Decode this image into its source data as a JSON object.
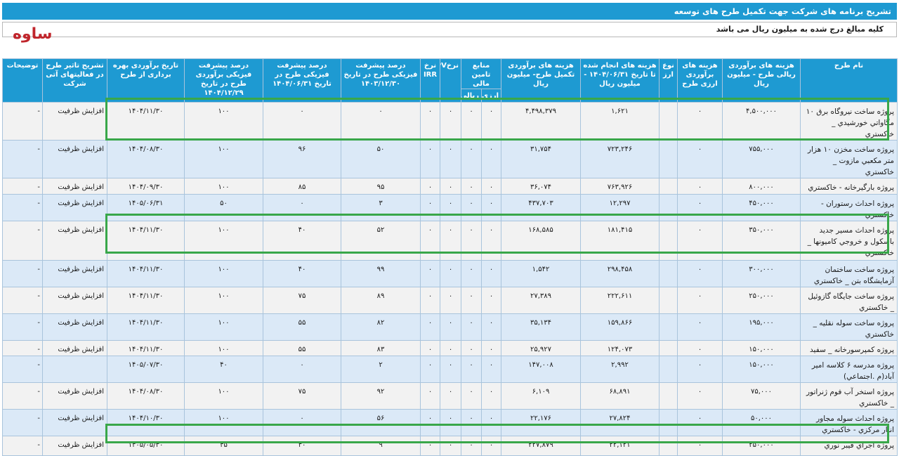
{
  "header": {
    "title": "تشریح برنامه های شرکت جهت تکمیل طرح های توسعه",
    "subtitle": "کلیه مبالغ درج شده به میلیون ریال می باشد",
    "stamp": "ساوه"
  },
  "columns": {
    "name": "نام طرح",
    "rial_cost": "هزینه های برآوردی ریالی طرح - میلیون ریال",
    "fx_cost": "هزینه های برآوردی ارزی طرح",
    "currency": "نوع ارز",
    "spent": "هزینه های انجام شده تا تاریخ ۱۴۰۴/۰۶/۳۱ - میلیون ریال",
    "to_complete": "هزینه های برآوردی تکمیل طرح- میلیون ریال",
    "funding": "منابع تامین مالی",
    "funding_fx": "ارزی",
    "funding_rial": "ریالی",
    "npv": "نرخNPV",
    "irr": "نرخ IRR",
    "prog_1403": "درصد پیشرفت فیزیکی طرح در تاریخ ۱۴۰۳/۱۲/۳۰",
    "prog_1404_06": "درصد پیشرفت فیزیکی طرح در تاریخ ۱۴۰۴/۰۶/۳۱",
    "prog_1404_12": "درصد پیشرفت فیزیکی برآوردی طرح در تاریخ ۱۴۰۴/۱۲/۲۹",
    "operation_date": "تاریخ برآوردی بهره برداری از طرح",
    "effect": "تشریح تاثیر طرح در فعالیتهای آتی شرکت",
    "notes": "توضیحات"
  },
  "rows": [
    {
      "name": "پروژه ساخت نیروگاه برق ۱۰ مگاواتي خورشيدي _ خاكستري",
      "rial_cost": "۴,۵۰۰,۰۰۰",
      "fx_cost": "۰",
      "currency": "",
      "spent": "۱,۶۲۱",
      "to_complete": "۴,۴۹۸,۳۷۹",
      "funding_fx": "۰",
      "funding_rial": "۰",
      "npv": "۰",
      "irr": "۰",
      "prog_1403": "۰",
      "prog_1404_06": "۰",
      "prog_1404_12": "۱۰۰",
      "operation_date": "۱۴۰۴/۱۱/۳۰",
      "effect": "افزایش ظرفیت",
      "notes": "-"
    },
    {
      "name": "پروژه ساخت مخزن ۱۰ هزار متر مكعبي مازوت _ خاكستري",
      "rial_cost": "۷۵۵,۰۰۰",
      "fx_cost": "۰",
      "currency": "",
      "spent": "۷۲۳,۲۴۶",
      "to_complete": "۳۱,۷۵۴",
      "funding_fx": "۰",
      "funding_rial": "۰",
      "npv": "۰",
      "irr": "۰",
      "prog_1403": "۵۰",
      "prog_1404_06": "۹۶",
      "prog_1404_12": "۱۰۰",
      "operation_date": "۱۴۰۴/۰۸/۳۰",
      "effect": "افزایش ظرفیت",
      "notes": "-"
    },
    {
      "name": "پروژه بارگيرخانه - خاكستري",
      "rial_cost": "۸۰۰,۰۰۰",
      "fx_cost": "۰",
      "currency": "",
      "spent": "۷۶۳,۹۲۶",
      "to_complete": "۳۶,۰۷۴",
      "funding_fx": "۰",
      "funding_rial": "۰",
      "npv": "۰",
      "irr": "۰",
      "prog_1403": "۹۵",
      "prog_1404_06": "۸۵",
      "prog_1404_12": "۱۰۰",
      "operation_date": "۱۴۰۴/۰۹/۳۰",
      "effect": "افزایش ظرفیت",
      "notes": "-"
    },
    {
      "name": "پروژه احداث رستوران - خاكستري",
      "rial_cost": "۴۵۰,۰۰۰",
      "fx_cost": "۰",
      "currency": "",
      "spent": "۱۲,۲۹۷",
      "to_complete": "۴۳۷,۷۰۳",
      "funding_fx": "۰",
      "funding_rial": "۰",
      "npv": "۰",
      "irr": "۰",
      "prog_1403": "۳",
      "prog_1404_06": "۰",
      "prog_1404_12": "۵۰",
      "operation_date": "۱۴۰۵/۰۶/۳۱",
      "effect": "افزایش ظرفیت",
      "notes": "-"
    },
    {
      "name": "پروژه احداث مسير جديد باسكول و خروجي كاميونها _ خاكستري",
      "rial_cost": "۳۵۰,۰۰۰",
      "fx_cost": "۰",
      "currency": "",
      "spent": "۱۸۱,۴۱۵",
      "to_complete": "۱۶۸,۵۸۵",
      "funding_fx": "۰",
      "funding_rial": "۰",
      "npv": "۰",
      "irr": "۰",
      "prog_1403": "۵۲",
      "prog_1404_06": "۴۰",
      "prog_1404_12": "۱۰۰",
      "operation_date": "۱۴۰۴/۱۱/۳۰",
      "effect": "افزایش ظرفیت",
      "notes": "-"
    },
    {
      "name": "پروژه ساخت ساختمان آزمايشگاه بتن _ خاكستري",
      "rial_cost": "۳۰۰,۰۰۰",
      "fx_cost": "۰",
      "currency": "",
      "spent": "۲۹۸,۴۵۸",
      "to_complete": "۱,۵۴۲",
      "funding_fx": "۰",
      "funding_rial": "۰",
      "npv": "۰",
      "irr": "۰",
      "prog_1403": "۹۹",
      "prog_1404_06": "۴۰",
      "prog_1404_12": "۱۰۰",
      "operation_date": "۱۴۰۴/۱۱/۳۰",
      "effect": "افزایش ظرفیت",
      "notes": "-"
    },
    {
      "name": "پروژه ساخت جايگاه گازوئيل _ خاكستري",
      "rial_cost": "۲۵۰,۰۰۰",
      "fx_cost": "۰",
      "currency": "",
      "spent": "۲۲۲,۶۱۱",
      "to_complete": "۲۷,۳۸۹",
      "funding_fx": "۰",
      "funding_rial": "۰",
      "npv": "۰",
      "irr": "۰",
      "prog_1403": "۸۹",
      "prog_1404_06": "۷۵",
      "prog_1404_12": "۱۰۰",
      "operation_date": "۱۴۰۴/۱۱/۳۰",
      "effect": "افزایش ظرفیت",
      "notes": "-"
    },
    {
      "name": "پروژه ساخت سوله نقليه _ خاكستري",
      "rial_cost": "۱۹۵,۰۰۰",
      "fx_cost": "۰",
      "currency": "",
      "spent": "۱۵۹,۸۶۶",
      "to_complete": "۳۵,۱۳۴",
      "funding_fx": "۰",
      "funding_rial": "۰",
      "npv": "۰",
      "irr": "۰",
      "prog_1403": "۸۲",
      "prog_1404_06": "۵۵",
      "prog_1404_12": "۱۰۰",
      "operation_date": "۱۴۰۴/۱۱/۳۰",
      "effect": "افزایش ظرفیت",
      "notes": "-"
    },
    {
      "name": "پروژه كمپرسورخانه _ سفيد",
      "rial_cost": "۱۵۰,۰۰۰",
      "fx_cost": "۰",
      "currency": "",
      "spent": "۱۲۴,۰۷۳",
      "to_complete": "۲۵,۹۲۷",
      "funding_fx": "۰",
      "funding_rial": "۰",
      "npv": "۰",
      "irr": "۰",
      "prog_1403": "۸۳",
      "prog_1404_06": "۵۵",
      "prog_1404_12": "۱۰۰",
      "operation_date": "۱۴۰۴/۱۱/۳۰",
      "effect": "افزایش ظرفیت",
      "notes": "-"
    },
    {
      "name": "پروژه مدرسه ۶ كلاسه امير آباد(م .اجتماعي)",
      "rial_cost": "۱۵۰,۰۰۰",
      "fx_cost": "۰",
      "currency": "",
      "spent": "۲,۹۹۲",
      "to_complete": "۱۴۷,۰۰۸",
      "funding_fx": "۰",
      "funding_rial": "۰",
      "npv": "۰",
      "irr": "۰",
      "prog_1403": "۲",
      "prog_1404_06": "۰",
      "prog_1404_12": "۴۰",
      "operation_date": "۱۴۰۵/۰۷/۳۰",
      "effect": "",
      "notes": "-"
    },
    {
      "name": "پروژه استخر آب فوم ژنراتور _ خاكستري",
      "rial_cost": "۷۵,۰۰۰",
      "fx_cost": "۰",
      "currency": "",
      "spent": "۶۸,۸۹۱",
      "to_complete": "۶,۱۰۹",
      "funding_fx": "۰",
      "funding_rial": "۰",
      "npv": "۰",
      "irr": "۰",
      "prog_1403": "۹۲",
      "prog_1404_06": "۷۵",
      "prog_1404_12": "۱۰۰",
      "operation_date": "۱۴۰۴/۰۸/۳۰",
      "effect": "افزایش ظرفیت",
      "notes": "-"
    },
    {
      "name": "پروژه احداث سوله مجاور انبار مركزي - خاكستري",
      "rial_cost": "۵۰,۰۰۰",
      "fx_cost": "۰",
      "currency": "",
      "spent": "۲۷,۸۲۴",
      "to_complete": "۲۲,۱۷۶",
      "funding_fx": "۰",
      "funding_rial": "۰",
      "npv": "۰",
      "irr": "۰",
      "prog_1403": "۵۶",
      "prog_1404_06": "۰",
      "prog_1404_12": "۱۰۰",
      "operation_date": "۱۴۰۴/۱۰/۳۰",
      "effect": "افزایش ظرفیت",
      "notes": "-"
    },
    {
      "name": "پروژه اجراي فيبر نوري",
      "rial_cost": "۲۵۰,۰۰۰",
      "fx_cost": "۰",
      "currency": "",
      "spent": "۲۲,۱۲۱",
      "to_complete": "۲۲۷,۸۷۹",
      "funding_fx": "۰",
      "funding_rial": "۰",
      "npv": "۰",
      "irr": "۰",
      "prog_1403": "۹",
      "prog_1404_06": "۴۰",
      "prog_1404_12": "۴۵",
      "operation_date": "۱۴۰۵/۰۵/۳۰",
      "effect": "افزایش ظرفیت",
      "notes": "-"
    }
  ],
  "highlight_color": "#39a74a",
  "header_color": "#1e9ad2"
}
